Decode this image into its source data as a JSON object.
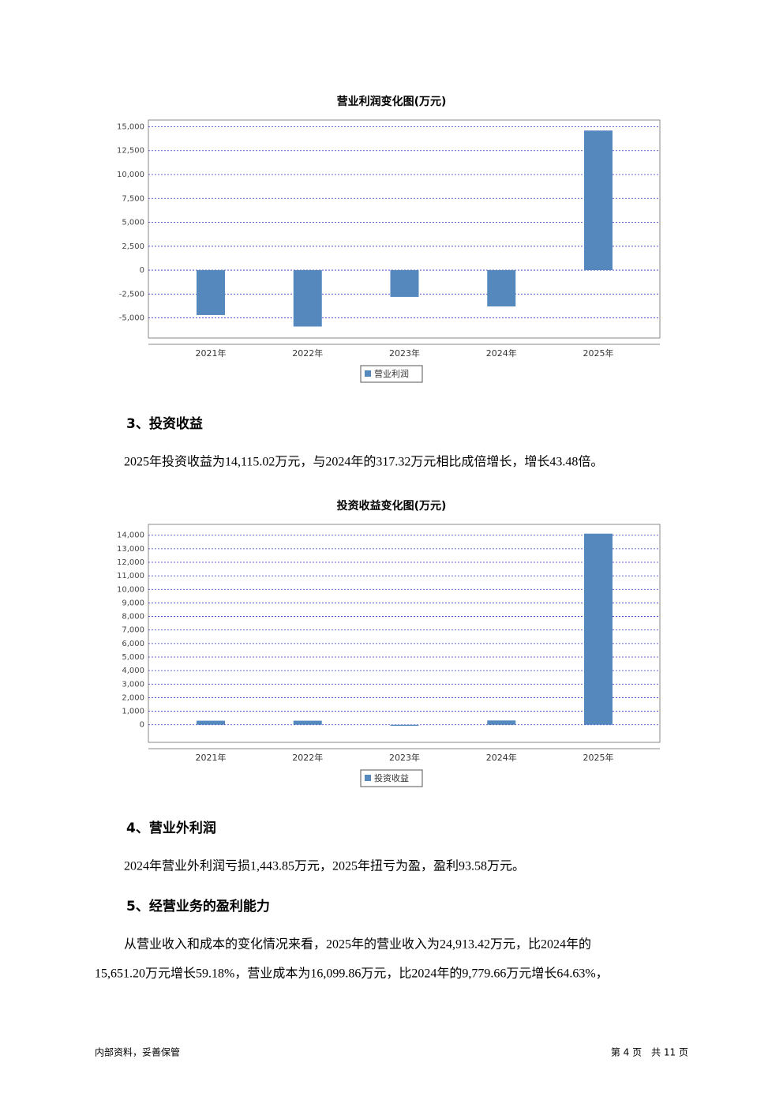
{
  "chart_data": [
    {
      "type": "bar",
      "title": "营业利润变化图(万元)",
      "categories": [
        "2021年",
        "2022年",
        "2023年",
        "2024年",
        "2025年"
      ],
      "series": [
        {
          "name": "营业利润",
          "color": "#5589bd",
          "values": [
            -4700,
            -5900,
            -2800,
            -3800,
            14600
          ]
        }
      ],
      "ylim": [
        -7100,
        15700
      ],
      "yticks": [
        {
          "value": -5000,
          "label": "-5,000"
        },
        {
          "value": -2500,
          "label": "-2,500"
        },
        0,
        {
          "value": 2500,
          "label": "2,500"
        },
        {
          "value": 5000,
          "label": "5,000"
        },
        {
          "value": 7500,
          "label": "7,500"
        },
        {
          "value": 10000,
          "label": "10,000"
        },
        {
          "value": 12500,
          "label": "12,500"
        },
        {
          "value": 15000,
          "label": "15,000"
        }
      ],
      "grid": true
    },
    {
      "type": "bar",
      "title": "投资收益变化图(万元)",
      "categories": [
        "2021年",
        "2022年",
        "2023年",
        "2024年",
        "2025年"
      ],
      "series": [
        {
          "name": "投资收益",
          "color": "#5589bd",
          "values": [
            300,
            300,
            -80,
            317.32,
            14115.02
          ]
        }
      ],
      "ylim": [
        -1300,
        14800
      ],
      "yticks": [
        0,
        {
          "value": 1000,
          "label": "1,000"
        },
        {
          "value": 2000,
          "label": "2,000"
        },
        {
          "value": 3000,
          "label": "3,000"
        },
        {
          "value": 4000,
          "label": "4,000"
        },
        {
          "value": 5000,
          "label": "5,000"
        },
        {
          "value": 6000,
          "label": "6,000"
        },
        {
          "value": 7000,
          "label": "7,000"
        },
        {
          "value": 8000,
          "label": "8,000"
        },
        {
          "value": 9000,
          "label": "9,000"
        },
        {
          "value": 10000,
          "label": "10,000"
        },
        {
          "value": 11000,
          "label": "11,000"
        },
        {
          "value": 12000,
          "label": "12,000"
        },
        {
          "value": 13000,
          "label": "13,000"
        },
        {
          "value": 14000,
          "label": "14,000"
        }
      ],
      "grid": true
    }
  ],
  "sections": [
    {
      "heading": "3、投资收益",
      "lines": [
        "2025年投资收益为14,115.02万元，与2024年的317.32万元相比成倍增长，增长43.48倍。"
      ]
    },
    {
      "heading": "4、营业外利润",
      "lines": [
        "2024年营业外利润亏损1,443.85万元，2025年扭亏为盈，盈利93.58万元。"
      ]
    },
    {
      "heading": "5、经营业务的盈利能力",
      "lines": [
        "从营业收入和成本的变化情况来看，2025年的营业收入为24,913.42万元，比2024年的",
        "15,651.20万元增长59.18%，营业成本为16,099.86万元，比2024年的9,779.66万元增长64.63%，"
      ]
    }
  ],
  "footer": {
    "left": "内部资料，妥善保管",
    "right": "第 4 页　共 11 页"
  }
}
